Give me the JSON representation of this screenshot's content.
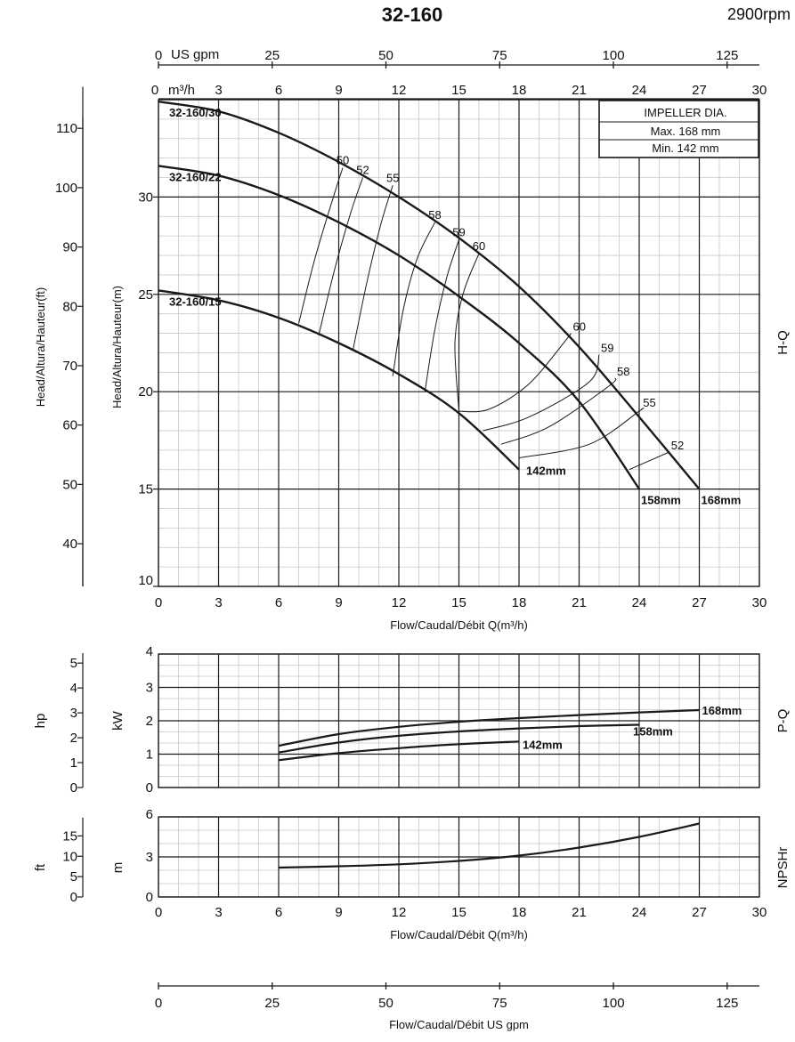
{
  "header": {
    "title": "32-160",
    "speed": "2900rpm"
  },
  "colors": {
    "curve": "#1a1a1a",
    "grid_major": "#1a1a1a",
    "grid_minor": "#c8c8c8",
    "background": "#ffffff"
  },
  "chart_data": [
    {
      "type": "line",
      "panel": "H-Q",
      "panel_label": "H-Q",
      "x": {
        "label": "Flow/Caudal/Débit Q(m³/h)",
        "unit": "m³/h",
        "range": [
          0,
          30
        ],
        "ticks": [
          0,
          3,
          6,
          9,
          12,
          15,
          18,
          21,
          24,
          27,
          30
        ]
      },
      "top_axis_m3h": {
        "label": "m³/h",
        "ticks": [
          0,
          3,
          6,
          9,
          12,
          15,
          18,
          21,
          24,
          27,
          30
        ]
      },
      "top_axis_usgpm": {
        "label": "US gpm",
        "ticks": [
          0,
          25,
          50,
          75,
          100,
          125
        ]
      },
      "y": {
        "label": "Head/Altura/Hauteur(m)",
        "unit": "m",
        "range": [
          10,
          35
        ],
        "ticks": [
          10,
          15,
          20,
          25,
          30
        ]
      },
      "y2": {
        "label": "Head/Altura/Hauteur(ft)",
        "unit": "ft",
        "ticks": [
          40,
          50,
          60,
          70,
          80,
          90,
          100,
          110
        ]
      },
      "legend_box": {
        "title": "IMPELLER DIA.",
        "rows": [
          "Max.  168 mm",
          "Min.  142 mm"
        ]
      },
      "series": [
        {
          "name": "168mm",
          "curve_tag": "32-160/30",
          "points": [
            [
              0,
              34.9
            ],
            [
              3,
              34.4
            ],
            [
              6,
              33.3
            ],
            [
              9,
              31.8
            ],
            [
              12,
              30.0
            ],
            [
              15,
              27.9
            ],
            [
              18,
              25.4
            ],
            [
              21,
              22.3
            ],
            [
              24,
              18.7
            ],
            [
              27,
              15.0
            ]
          ]
        },
        {
          "name": "158mm",
          "curve_tag": "32-160/22",
          "points": [
            [
              0,
              31.6
            ],
            [
              3,
              31.1
            ],
            [
              6,
              30.1
            ],
            [
              9,
              28.7
            ],
            [
              12,
              27.0
            ],
            [
              15,
              24.9
            ],
            [
              18,
              22.5
            ],
            [
              21,
              19.5
            ],
            [
              24,
              15.0
            ]
          ]
        },
        {
          "name": "142mm",
          "curve_tag": "32-160/15",
          "points": [
            [
              0,
              25.2
            ],
            [
              3,
              24.7
            ],
            [
              6,
              23.8
            ],
            [
              9,
              22.5
            ],
            [
              12,
              20.9
            ],
            [
              15,
              18.9
            ],
            [
              18,
              16.0
            ]
          ]
        }
      ],
      "efficiency_lines": [
        {
          "label": "50",
          "points": [
            [
              7.0,
              23.5
            ],
            [
              7.8,
              26.8
            ],
            [
              8.7,
              29.9
            ],
            [
              9.2,
              31.5
            ]
          ]
        },
        {
          "label": "52",
          "points": [
            [
              8.0,
              22.9
            ],
            [
              8.8,
              26.3
            ],
            [
              9.6,
              29.2
            ],
            [
              10.2,
              31.0
            ]
          ]
        },
        {
          "label": "55",
          "points": [
            [
              9.7,
              22.1
            ],
            [
              10.4,
              25.6
            ],
            [
              11.1,
              28.6
            ],
            [
              11.7,
              30.6
            ]
          ]
        },
        {
          "label": "58",
          "points": [
            [
              11.7,
              20.8
            ],
            [
              12.2,
              24.1
            ],
            [
              12.9,
              26.8
            ],
            [
              13.8,
              28.7
            ]
          ]
        },
        {
          "label": "59",
          "points": [
            [
              13.3,
              20.0
            ],
            [
              13.8,
              23.2
            ],
            [
              14.4,
              25.9
            ],
            [
              15.0,
              27.8
            ]
          ]
        },
        {
          "label": "60",
          "points": [
            [
              15.0,
              19.0
            ],
            [
              14.8,
              22.5
            ],
            [
              15.2,
              25.0
            ],
            [
              16.0,
              27.1
            ]
          ]
        },
        {
          "label": "60",
          "points": [
            [
              15.0,
              19.0
            ],
            [
              16.5,
              19.1
            ],
            [
              18.5,
              20.4
            ],
            [
              20.3,
              22.6
            ],
            [
              20.6,
              23.0
            ]
          ]
        },
        {
          "label": "59",
          "points": [
            [
              16.2,
              18.0
            ],
            [
              18.5,
              18.7
            ],
            [
              21.5,
              20.5
            ],
            [
              22.0,
              21.9
            ]
          ]
        },
        {
          "label": "58",
          "points": [
            [
              17.1,
              17.3
            ],
            [
              19.5,
              18.2
            ],
            [
              22.5,
              20.3
            ],
            [
              22.8,
              20.7
            ]
          ]
        },
        {
          "label": "55",
          "points": [
            [
              18.0,
              16.6
            ],
            [
              21.5,
              17.3
            ],
            [
              24.0,
              19.0
            ],
            [
              24.1,
              19.1
            ]
          ]
        },
        {
          "label": "52",
          "points": [
            [
              23.5,
              16.0
            ],
            [
              25.5,
              16.9
            ]
          ]
        }
      ]
    },
    {
      "type": "line",
      "panel": "P-Q",
      "panel_label": "P-Q",
      "x": {
        "range": [
          0,
          30
        ]
      },
      "y": {
        "label": "kW",
        "unit": "kW",
        "range": [
          0,
          4
        ],
        "ticks": [
          0,
          1,
          2,
          3,
          4
        ]
      },
      "y2": {
        "label": "hp",
        "unit": "hp",
        "ticks": [
          0,
          1,
          2,
          3,
          4,
          5
        ]
      },
      "series": [
        {
          "name": "168mm",
          "points": [
            [
              6,
              1.25
            ],
            [
              9,
              1.6
            ],
            [
              12,
              1.82
            ],
            [
              15,
              1.97
            ],
            [
              18,
              2.08
            ],
            [
              21,
              2.17
            ],
            [
              24,
              2.25
            ],
            [
              27,
              2.32
            ]
          ]
        },
        {
          "name": "158mm",
          "points": [
            [
              6,
              1.05
            ],
            [
              9,
              1.35
            ],
            [
              12,
              1.55
            ],
            [
              15,
              1.68
            ],
            [
              18,
              1.77
            ],
            [
              21,
              1.84
            ],
            [
              24,
              1.88
            ]
          ]
        },
        {
          "name": "142mm",
          "points": [
            [
              6,
              0.82
            ],
            [
              9,
              1.03
            ],
            [
              12,
              1.18
            ],
            [
              15,
              1.3
            ],
            [
              18,
              1.38
            ]
          ]
        }
      ]
    },
    {
      "type": "line",
      "panel": "NPSHr",
      "panel_label": "NPSHr",
      "x": {
        "label": "Flow/Caudal/Débit Q(m³/h)",
        "unit": "m³/h",
        "range": [
          0,
          30
        ],
        "ticks": [
          0,
          3,
          6,
          9,
          12,
          15,
          18,
          21,
          24,
          27,
          30
        ]
      },
      "y": {
        "label": "m",
        "unit": "m",
        "range": [
          0,
          6
        ],
        "ticks": [
          0,
          3,
          6
        ]
      },
      "y2": {
        "label": "ft",
        "unit": "ft",
        "ticks": [
          0,
          5,
          10,
          15
        ]
      },
      "series": [
        {
          "name": "NPSHr",
          "points": [
            [
              6,
              2.2
            ],
            [
              9,
              2.3
            ],
            [
              12,
              2.45
            ],
            [
              15,
              2.7
            ],
            [
              18,
              3.1
            ],
            [
              21,
              3.7
            ],
            [
              24,
              4.5
            ],
            [
              27,
              5.5
            ]
          ]
        }
      ]
    }
  ],
  "bottom_axis_usgpm": {
    "label": "Flow/Caudal/Débit  US gpm",
    "ticks": [
      0,
      25,
      50,
      75,
      100,
      125
    ]
  }
}
